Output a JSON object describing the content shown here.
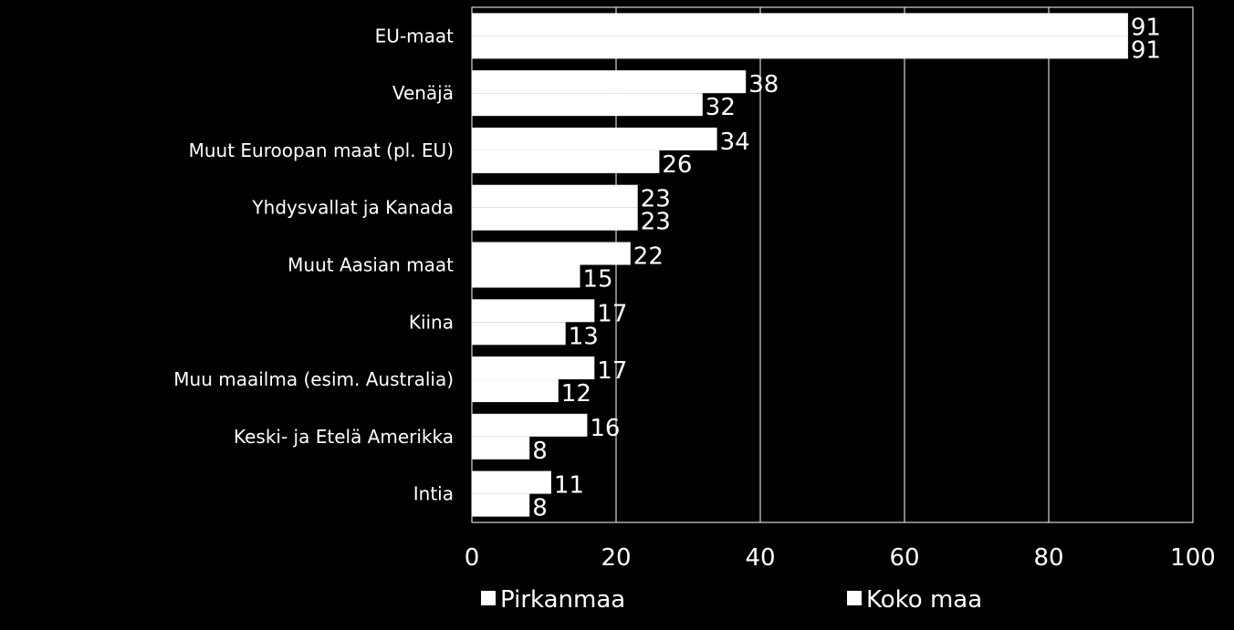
{
  "chart_data": {
    "type": "bar",
    "orientation": "horizontal",
    "categories": [
      "EU-maat",
      "Venäjä",
      "Muut Euroopan maat (pl. EU)",
      "Yhdysvallat ja Kanada",
      "Muut Aasian maat",
      "Kiina",
      "Muu maailma (esim. Australia)",
      "Keski- ja Etelä Amerikka",
      "Intia"
    ],
    "series": [
      {
        "name": "Pirkanmaa",
        "values": [
          91,
          38,
          34,
          23,
          22,
          17,
          17,
          16,
          11
        ],
        "color": "#ffffff"
      },
      {
        "name": "Koko maa",
        "values": [
          91,
          32,
          26,
          23,
          15,
          13,
          12,
          8,
          8
        ],
        "color": "#ffffff"
      }
    ],
    "xlim": [
      0,
      100
    ],
    "xticks": [
      "0",
      "20",
      "40",
      "60",
      "80",
      "100"
    ],
    "grid": true,
    "legend_position": "bottom",
    "background": "#000000",
    "grid_color": "#ffffff"
  }
}
